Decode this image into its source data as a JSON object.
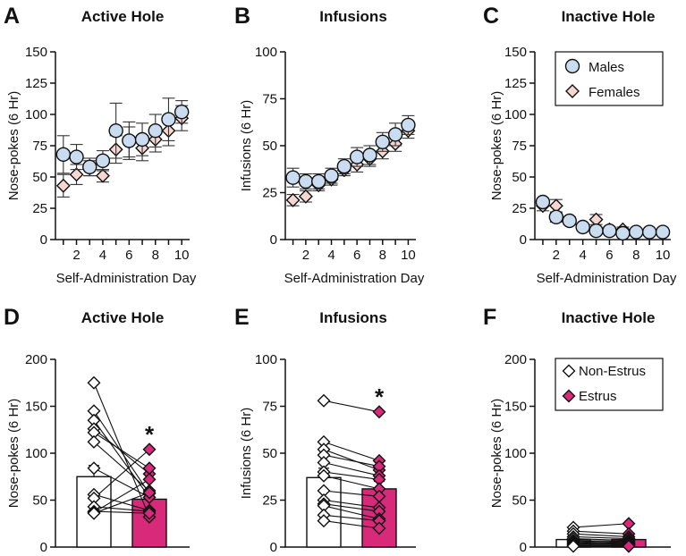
{
  "colors": {
    "males_fill": "#c9dcf0",
    "females_fill": "#f5d6d2",
    "estrus_fill": "#d9297a",
    "nonestrus_fill": "#ffffff",
    "axis": "#111111"
  },
  "chart_data": [
    {
      "id": "A",
      "letter": "A",
      "type": "scatter",
      "title": "Active Hole",
      "xlabel": "Self-Administration Day",
      "ylabel": "Nose-pokes  (6 Hr)",
      "ylim": [
        0,
        150
      ],
      "yticks": [
        0,
        25,
        50,
        75,
        100,
        125,
        150
      ],
      "xlim": [
        0.4,
        10.6
      ],
      "xticks": [
        2,
        4,
        6,
        8,
        10
      ],
      "series": [
        {
          "name": "Males",
          "marker": "circle",
          "x": [
            1,
            2,
            3,
            4,
            5,
            6,
            7,
            8,
            9,
            10
          ],
          "values": [
            68,
            66,
            58,
            63,
            87,
            79,
            80,
            87,
            96,
            102
          ],
          "err": [
            15,
            10,
            7,
            8,
            22,
            15,
            13,
            13,
            17,
            9
          ]
        },
        {
          "name": "Females",
          "marker": "diamond",
          "x": [
            1,
            2,
            3,
            4,
            5,
            6,
            7,
            8,
            9,
            10
          ],
          "values": [
            43,
            52,
            57,
            51,
            72,
            78,
            73,
            80,
            87,
            97
          ],
          "err": [
            9,
            8,
            6,
            5,
            11,
            12,
            10,
            10,
            12,
            10
          ]
        }
      ]
    },
    {
      "id": "B",
      "letter": "B",
      "type": "scatter",
      "title": "Infusions",
      "xlabel": "Self-Administration Day",
      "ylabel": "Infusions  (6 Hr)",
      "ylim": [
        0,
        100
      ],
      "yticks": [
        0,
        25,
        50,
        75,
        100
      ],
      "xlim": [
        0.4,
        10.6
      ],
      "xticks": [
        2,
        4,
        6,
        8,
        10
      ],
      "series": [
        {
          "name": "Males",
          "marker": "circle",
          "x": [
            1,
            2,
            3,
            4,
            5,
            6,
            7,
            8,
            9,
            10
          ],
          "values": [
            33,
            31,
            31,
            34,
            39,
            44,
            45,
            52,
            56,
            61
          ],
          "err": [
            5,
            4,
            4,
            4,
            4,
            5,
            5,
            5,
            6,
            5
          ]
        },
        {
          "name": "Females",
          "marker": "diamond",
          "x": [
            1,
            2,
            3,
            4,
            5,
            6,
            7,
            8,
            9,
            10
          ],
          "values": [
            21,
            23,
            29,
            32,
            37,
            40,
            43,
            47,
            51,
            58
          ],
          "err": [
            3,
            3,
            3,
            3,
            3,
            4,
            4,
            4,
            4,
            4
          ]
        }
      ]
    },
    {
      "id": "C",
      "letter": "C",
      "type": "scatter",
      "title": "Inactive Hole",
      "xlabel": "Self-Administration Day",
      "ylabel": "Nose-pokes  (6 Hr)",
      "ylim": [
        0,
        150
      ],
      "yticks": [
        0,
        25,
        50,
        75,
        100,
        125,
        150
      ],
      "xlim": [
        0.4,
        10.6
      ],
      "xticks": [
        2,
        4,
        6,
        8,
        10
      ],
      "legend": [
        "Males",
        "Females"
      ],
      "legend_position": "top-right",
      "series": [
        {
          "name": "Males",
          "marker": "circle",
          "x": [
            1,
            2,
            3,
            4,
            5,
            6,
            7,
            8,
            9,
            10
          ],
          "values": [
            30,
            18,
            15,
            10,
            7,
            7,
            5,
            6,
            6,
            6
          ],
          "err": [
            3,
            4,
            3,
            2,
            2,
            2,
            1,
            2,
            2,
            1
          ]
        },
        {
          "name": "Females",
          "marker": "diamond",
          "x": [
            1,
            2,
            3,
            4,
            5,
            6,
            7,
            8,
            9,
            10
          ],
          "values": [
            27,
            27,
            15,
            10,
            16,
            8,
            8,
            5,
            6,
            5
          ],
          "err": [
            4,
            5,
            3,
            2,
            4,
            2,
            2,
            1,
            2,
            1
          ]
        }
      ]
    },
    {
      "id": "D",
      "letter": "D",
      "type": "bar",
      "title": "Active Hole",
      "ylabel": "Nose-pokes  (6 Hr)",
      "ylim": [
        0,
        200
      ],
      "yticks": [
        0,
        50,
        100,
        150,
        200
      ],
      "categories": [
        "Non-Estrus",
        "Estrus"
      ],
      "values": [
        75,
        51
      ],
      "err": [
        12,
        7
      ],
      "significance": "*",
      "pairs": [
        [
          175,
          32
        ],
        [
          145,
          57
        ],
        [
          135,
          53
        ],
        [
          126,
          78
        ],
        [
          122,
          84
        ],
        [
          112,
          60
        ],
        [
          84,
          53
        ],
        [
          56,
          39
        ],
        [
          52,
          104
        ],
        [
          43,
          38
        ],
        [
          38,
          36
        ],
        [
          37,
          72
        ],
        [
          36,
          58
        ]
      ]
    },
    {
      "id": "E",
      "letter": "E",
      "type": "bar",
      "title": "Infusions",
      "ylabel": "Infusions  (6 Hr)",
      "ylim": [
        0,
        100
      ],
      "yticks": [
        0,
        25,
        50,
        75,
        100
      ],
      "categories": [
        "Non-Estrus",
        "Estrus"
      ],
      "values": [
        37,
        31
      ],
      "err": [
        5,
        4
      ],
      "significance": "*",
      "pairs": [
        [
          78,
          72
        ],
        [
          56,
          46
        ],
        [
          52,
          41
        ],
        [
          49,
          43
        ],
        [
          45,
          38
        ],
        [
          40,
          36
        ],
        [
          38,
          31
        ],
        [
          30,
          27
        ],
        [
          25,
          21
        ],
        [
          23,
          19
        ],
        [
          22,
          15
        ],
        [
          17,
          14
        ],
        [
          14,
          10
        ]
      ]
    },
    {
      "id": "F",
      "letter": "F",
      "type": "bar",
      "title": "Inactive Hole",
      "ylabel": "Nose-pokes  (6 Hr)",
      "ylim": [
        0,
        200
      ],
      "yticks": [
        0,
        50,
        100,
        150,
        200
      ],
      "categories": [
        "Non-Estrus",
        "Estrus"
      ],
      "values": [
        8,
        8
      ],
      "err": [
        2,
        2
      ],
      "legend": [
        "Non-Estrus",
        "Estrus"
      ],
      "legend_position": "top-right",
      "pairs": [
        [
          21,
          25
        ],
        [
          17,
          14
        ],
        [
          14,
          11
        ],
        [
          11,
          9
        ],
        [
          9,
          7
        ],
        [
          7,
          6
        ],
        [
          6,
          5
        ],
        [
          5,
          4
        ],
        [
          4,
          3
        ],
        [
          3,
          3
        ],
        [
          2,
          2
        ],
        [
          2,
          1
        ],
        [
          1,
          1
        ]
      ]
    }
  ]
}
